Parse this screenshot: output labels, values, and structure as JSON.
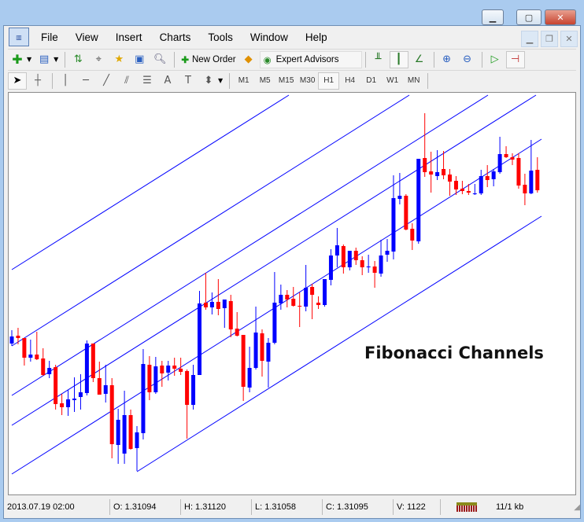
{
  "window": {
    "controls": [
      "minimize",
      "maximize",
      "close"
    ]
  },
  "menu": {
    "items": [
      "File",
      "View",
      "Insert",
      "Charts",
      "Tools",
      "Window",
      "Help"
    ]
  },
  "toolbar": {
    "new_order_label": "New Order",
    "expert_advisors_label": "Expert Advisors"
  },
  "timeframes": {
    "items": [
      "M1",
      "M5",
      "M15",
      "M30",
      "H1",
      "H4",
      "D1",
      "W1",
      "MN"
    ],
    "selected": "H1"
  },
  "chart": {
    "annotation": "Fibonacci Channels",
    "colors": {
      "bull": "#0000ff",
      "bear": "#ff0000",
      "channel": "#0000ff",
      "background": "#ffffff"
    }
  },
  "chart_data": {
    "type": "candlestick",
    "note_units": "relative price (no price axis shown)",
    "ohlc": [
      [
        203,
        220,
        200,
        212
      ],
      [
        213,
        223,
        202,
        210
      ],
      [
        210,
        210,
        175,
        185
      ],
      [
        185,
        208,
        180,
        189
      ],
      [
        189,
        218,
        182,
        183
      ],
      [
        184,
        197,
        162,
        163
      ],
      [
        164,
        181,
        159,
        172
      ],
      [
        173,
        176,
        119,
        126
      ],
      [
        127,
        139,
        112,
        122
      ],
      [
        122,
        144,
        111,
        132
      ],
      [
        131,
        160,
        116,
        133
      ],
      [
        135,
        164,
        119,
        141
      ],
      [
        140,
        207,
        137,
        203
      ],
      [
        203,
        203,
        154,
        159
      ],
      [
        159,
        180,
        138,
        138
      ],
      [
        139,
        176,
        128,
        150
      ],
      [
        150,
        159,
        57,
        75
      ],
      [
        74,
        120,
        50,
        106
      ],
      [
        63,
        143,
        50,
        112
      ],
      [
        112,
        119,
        68,
        69
      ],
      [
        70,
        98,
        41,
        90
      ],
      [
        89,
        196,
        81,
        177
      ],
      [
        176,
        187,
        131,
        141
      ],
      [
        141,
        186,
        139,
        174
      ],
      [
        175,
        181,
        148,
        165
      ],
      [
        166,
        181,
        156,
        175
      ],
      [
        175,
        185,
        162,
        171
      ],
      [
        171,
        185,
        163,
        167
      ],
      [
        168,
        170,
        82,
        125
      ],
      [
        125,
        176,
        119,
        163
      ],
      [
        163,
        270,
        163,
        254
      ],
      [
        255,
        293,
        246,
        249
      ],
      [
        249,
        268,
        240,
        256
      ],
      [
        256,
        285,
        239,
        247
      ],
      [
        248,
        259,
        223,
        259
      ],
      [
        257,
        265,
        211,
        221
      ],
      [
        222,
        243,
        212,
        213
      ],
      [
        214,
        214,
        130,
        148
      ],
      [
        147,
        199,
        141,
        172
      ],
      [
        172,
        250,
        170,
        217
      ],
      [
        216,
        221,
        161,
        181
      ],
      [
        180,
        210,
        147,
        204
      ],
      [
        204,
        294,
        202,
        255
      ],
      [
        254,
        278,
        246,
        265
      ],
      [
        265,
        271,
        249,
        259
      ],
      [
        260,
        275,
        250,
        251
      ],
      [
        251,
        268,
        224,
        250
      ],
      [
        250,
        303,
        244,
        274
      ],
      [
        275,
        279,
        234,
        265
      ],
      [
        255,
        263,
        247,
        252
      ],
      [
        252,
        285,
        250,
        285
      ],
      [
        284,
        323,
        277,
        315
      ],
      [
        315,
        350,
        300,
        328
      ],
      [
        327,
        329,
        292,
        300
      ],
      [
        300,
        321,
        296,
        321
      ],
      [
        321,
        325,
        303,
        309
      ],
      [
        309,
        314,
        290,
        300
      ],
      [
        300,
        316,
        293,
        301
      ],
      [
        301,
        308,
        274,
        293
      ],
      [
        292,
        335,
        288,
        315
      ],
      [
        316,
        336,
        307,
        321
      ],
      [
        320,
        417,
        310,
        388
      ],
      [
        387,
        420,
        380,
        391
      ],
      [
        391,
        393,
        347,
        348
      ],
      [
        349,
        356,
        322,
        334
      ],
      [
        333,
        438,
        330,
        438
      ],
      [
        439,
        496,
        415,
        421
      ],
      [
        422,
        447,
        395,
        418
      ],
      [
        416,
        449,
        411,
        421
      ],
      [
        425,
        448,
        412,
        417
      ],
      [
        418,
        425,
        391,
        409
      ],
      [
        410,
        416,
        392,
        399
      ],
      [
        400,
        410,
        393,
        397
      ],
      [
        397,
        406,
        392,
        395
      ],
      [
        393,
        406,
        392,
        394
      ],
      [
        394,
        424,
        392,
        416
      ],
      [
        416,
        430,
        402,
        411
      ],
      [
        412,
        425,
        403,
        422
      ],
      [
        421,
        466,
        419,
        444
      ],
      [
        444,
        454,
        439,
        440
      ],
      [
        440,
        445,
        430,
        437
      ],
      [
        439,
        445,
        400,
        404
      ],
      [
        405,
        419,
        379,
        394
      ],
      [
        394,
        462,
        393,
        423
      ],
      [
        424,
        440,
        395,
        398
      ]
    ]
  },
  "status": {
    "datetime": "2013.07.19 02:00",
    "open": "O: 1.31094",
    "high": "H: 1.31120",
    "low": "L: 1.31058",
    "close": "C: 1.31095",
    "volume": "V: 1122",
    "traffic": "11/1 kb"
  }
}
